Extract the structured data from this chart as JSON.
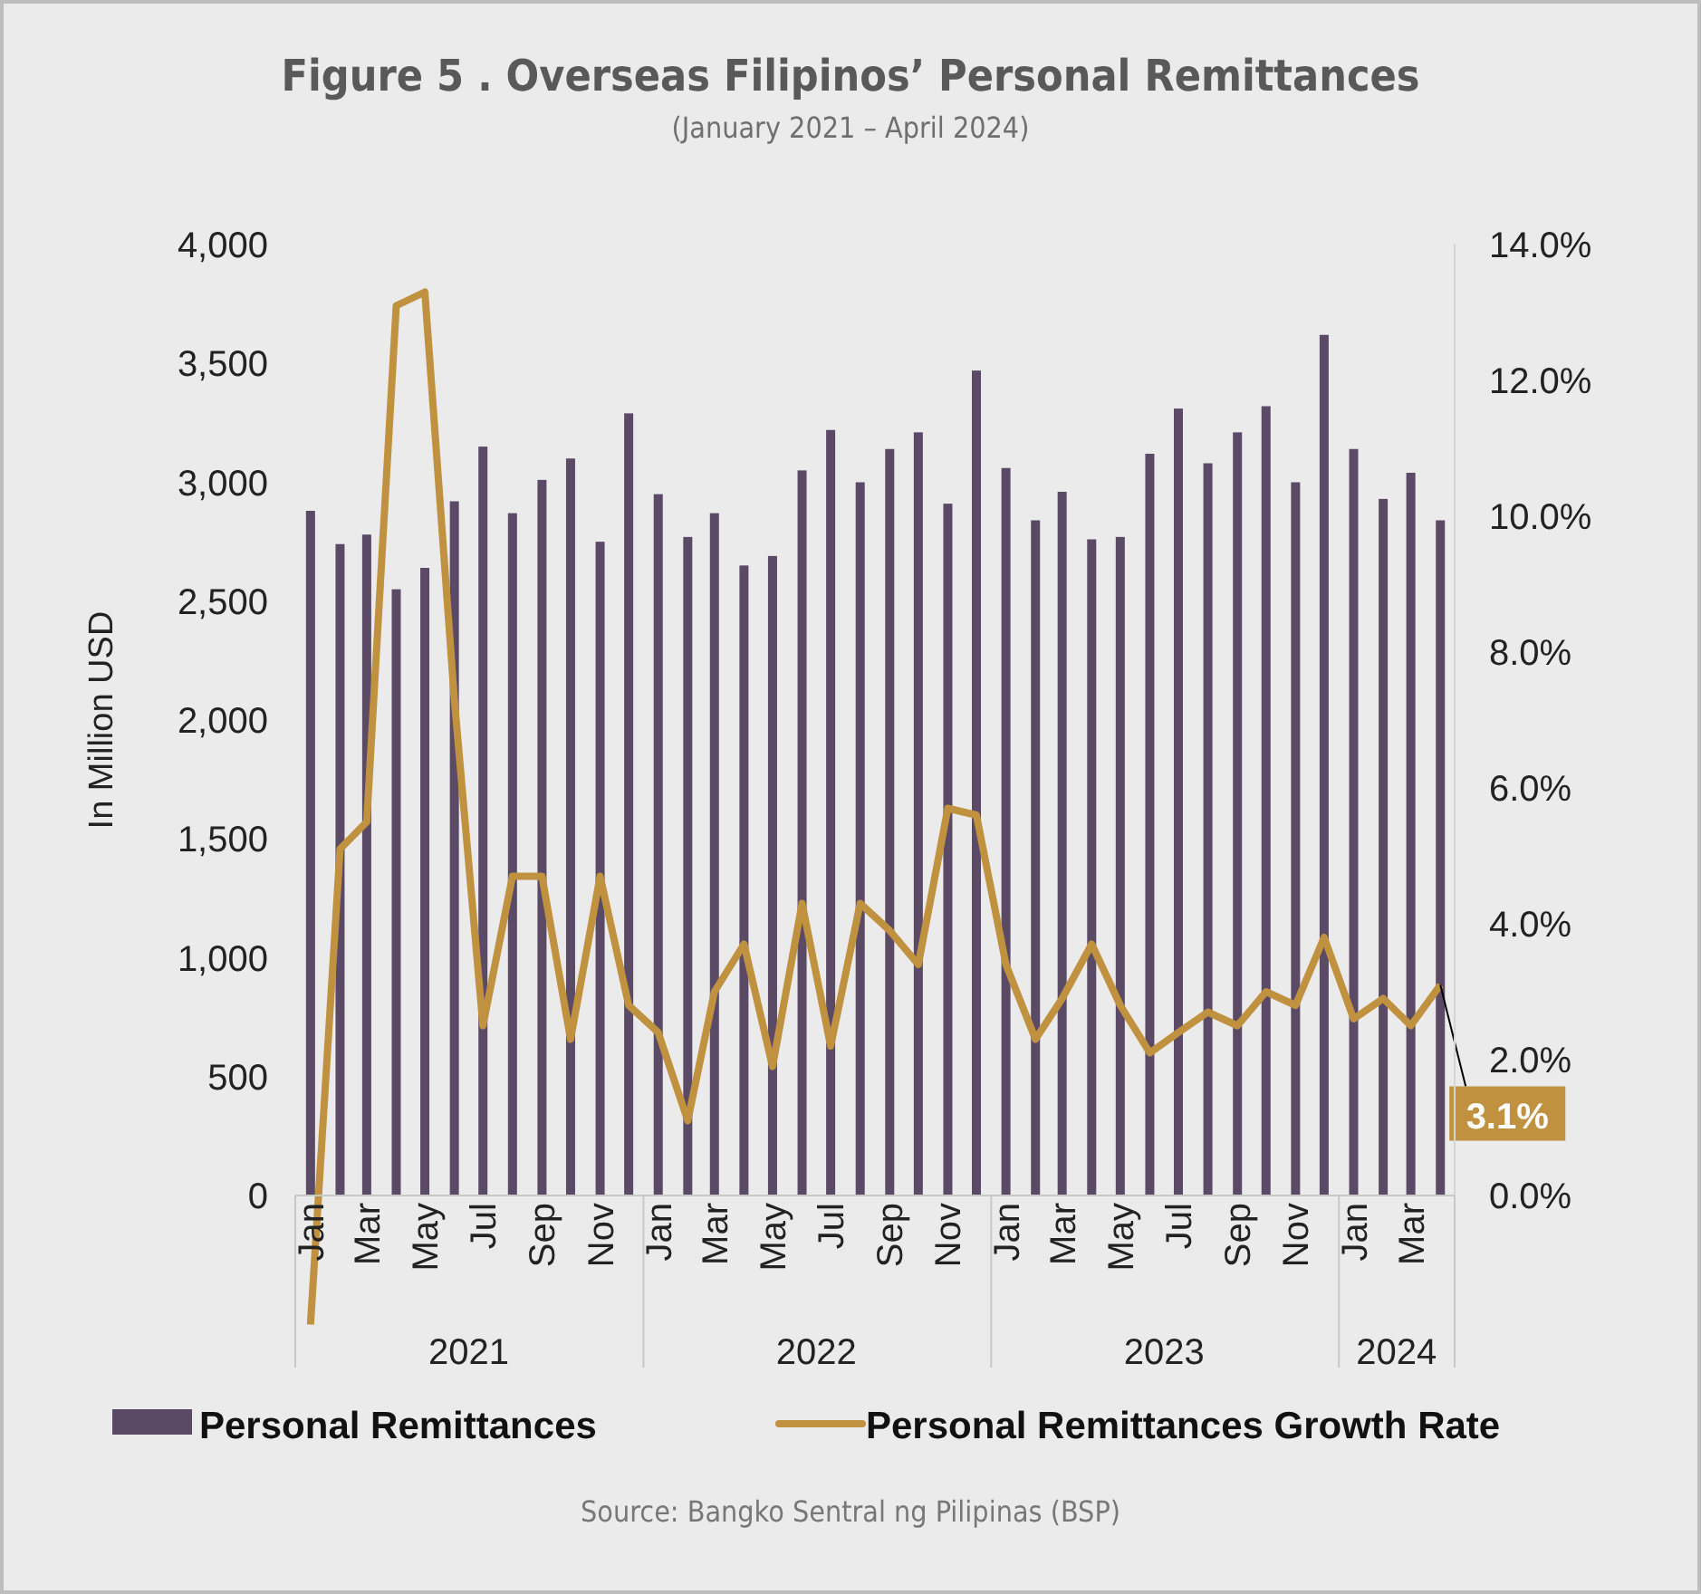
{
  "chart_data": {
    "type": "bar",
    "title": "Figure 5 . Overseas Filipinos’ Personal Remittances",
    "subtitle": "(January 2021 – April 2024)",
    "ylabel": "In Million USD",
    "x": [
      "2021-01",
      "2021-02",
      "2021-03",
      "2021-04",
      "2021-05",
      "2021-06",
      "2021-07",
      "2021-08",
      "2021-09",
      "2021-10",
      "2021-11",
      "2021-12",
      "2022-01",
      "2022-02",
      "2022-03",
      "2022-04",
      "2022-05",
      "2022-06",
      "2022-07",
      "2022-08",
      "2022-09",
      "2022-10",
      "2022-11",
      "2022-12",
      "2023-01",
      "2023-02",
      "2023-03",
      "2023-04",
      "2023-05",
      "2023-06",
      "2023-07",
      "2023-08",
      "2023-09",
      "2023-10",
      "2023-11",
      "2023-12",
      "2024-01",
      "2024-02",
      "2024-03",
      "2024-04"
    ],
    "xticks": [
      {
        "value": "2021-01",
        "label": "Jan"
      },
      {
        "value": "2021-03",
        "label": "Mar"
      },
      {
        "value": "2021-05",
        "label": "May"
      },
      {
        "value": "2021-07",
        "label": "Jul"
      },
      {
        "value": "2021-09",
        "label": "Sep"
      },
      {
        "value": "2021-11",
        "label": "Nov"
      },
      {
        "value": "2022-01",
        "label": "Jan"
      },
      {
        "value": "2022-03",
        "label": "Mar"
      },
      {
        "value": "2022-05",
        "label": "May"
      },
      {
        "value": "2022-07",
        "label": "Jul"
      },
      {
        "value": "2022-09",
        "label": "Sep"
      },
      {
        "value": "2022-11",
        "label": "Nov"
      },
      {
        "value": "2023-01",
        "label": "Jan"
      },
      {
        "value": "2023-03",
        "label": "Mar"
      },
      {
        "value": "2023-05",
        "label": "May"
      },
      {
        "value": "2023-07",
        "label": "Jul"
      },
      {
        "value": "2023-09",
        "label": "Sep"
      },
      {
        "value": "2023-11",
        "label": "Nov"
      },
      {
        "value": "2024-01",
        "label": "Jan"
      },
      {
        "value": "2024-03",
        "label": "Mar"
      }
    ],
    "series": [
      {
        "name": "Personal Remittances",
        "color": "#5a4a66",
        "values": [
          2880,
          2740,
          2780,
          2550,
          2640,
          2920,
          3150,
          2870,
          3010,
          3100,
          2750,
          3290,
          2950,
          2770,
          2870,
          2650,
          2690,
          3050,
          3220,
          3000,
          3140,
          3210,
          2910,
          3470,
          3060,
          2840,
          2960,
          2760,
          2770,
          3120,
          3310,
          3080,
          3210,
          3320,
          3000,
          3620,
          3140,
          2930,
          3040,
          2840
        ]
      },
      {
        "name": "Personal Remittances Growth Rate",
        "type": "line",
        "axis": "y2",
        "color": "#c0913f",
        "values": [
          -1.9,
          5.1,
          5.5,
          13.1,
          13.3,
          7.3,
          2.5,
          4.7,
          4.7,
          2.3,
          4.7,
          2.8,
          2.4,
          1.1,
          3.0,
          3.7,
          1.9,
          4.3,
          2.2,
          4.3,
          3.9,
          3.4,
          5.7,
          5.6,
          3.4,
          2.3,
          2.9,
          3.7,
          2.8,
          2.1,
          2.4,
          2.7,
          2.5,
          3.0,
          2.8,
          3.8,
          2.6,
          2.9,
          2.5,
          3.1
        ],
        "value_labels": [
          null,
          null,
          null,
          null,
          null,
          null,
          null,
          null,
          null,
          null,
          null,
          null,
          null,
          null,
          null,
          null,
          null,
          null,
          null,
          null,
          null,
          null,
          null,
          null,
          null,
          null,
          null,
          null,
          null,
          null,
          null,
          null,
          null,
          null,
          null,
          null,
          null,
          null,
          null,
          "3.1%"
        ]
      }
    ],
    "ylim": [
      0,
      4000
    ],
    "yticks": [
      0,
      500,
      {
        "value": 1000,
        "label": "1,000"
      },
      {
        "value": 1500,
        "label": "1,500"
      },
      {
        "value": 2000,
        "label": "2,000"
      },
      {
        "value": 2500,
        "label": "2,500"
      },
      {
        "value": 3000,
        "label": "3,000"
      },
      {
        "value": 3500,
        "label": "3,500"
      },
      {
        "value": 4000,
        "label": "4,000"
      }
    ],
    "y2lim": [
      -2,
      14
    ],
    "y2ticks": [
      {
        "value": 0,
        "label": "0.0%"
      },
      {
        "value": 2,
        "label": "2.0%"
      },
      {
        "value": 4,
        "label": "4.0%"
      },
      {
        "value": 6,
        "label": "6.0%"
      },
      {
        "value": 8,
        "label": "8.0%"
      },
      {
        "value": 10,
        "label": "10.0%"
      },
      {
        "value": 12,
        "label": "12.0%"
      },
      {
        "value": 14,
        "label": "14.0%"
      }
    ],
    "xlim": [
      "2020-12-16",
      "2024-04-16"
    ],
    "grid": false,
    "legend": "bottom",
    "x2lim": [
      "2020-12-16",
      "2024-04-16"
    ],
    "x2ticks": [
      {
        "value": "2021-06-16",
        "label": "2021"
      },
      {
        "value": "2022-06-16",
        "label": "2022"
      },
      {
        "value": "2023-06-16",
        "label": "2023"
      },
      {
        "value": "2024-02-15",
        "label": "2024"
      }
    ],
    "annotations": [
      "Source: Bangko Sentral ng Pilipinas (BSP)"
    ]
  }
}
